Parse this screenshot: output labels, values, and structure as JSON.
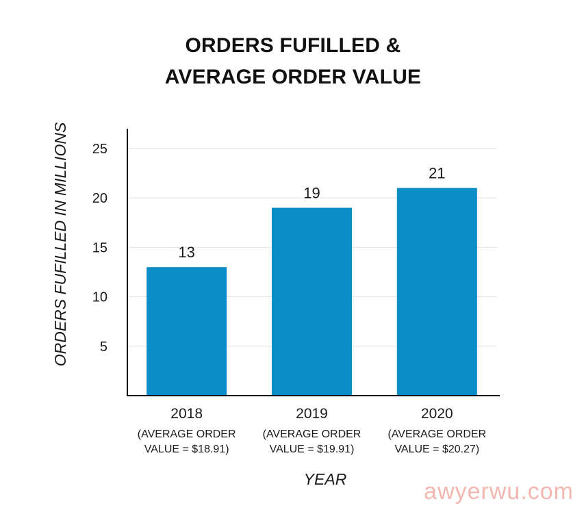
{
  "chart_data": {
    "type": "bar",
    "title_lines": [
      "ORDERS FUFILLED &",
      "AVERAGE ORDER VALUE"
    ],
    "categories": [
      "2018",
      "2019",
      "2020"
    ],
    "values": [
      13,
      19,
      21
    ],
    "value_labels": [
      "13",
      "19",
      "21"
    ],
    "notes": [
      [
        "(AVERAGE ORDER",
        "VALUE = $18.91)"
      ],
      [
        "(AVERAGE ORDER",
        "VALUE = $19.91)"
      ],
      [
        "(AVERAGE ORDER",
        "VALUE = $20.27)"
      ]
    ],
    "xlabel": "YEAR",
    "ylabel": "ORDERS FUFILLED IN MILLIONS",
    "ylim": [
      0,
      27
    ],
    "yticks": [
      5,
      10,
      15,
      20,
      25
    ],
    "grid": true,
    "bar_color": "#0a8cc6"
  },
  "watermark": "awyerwu.com"
}
